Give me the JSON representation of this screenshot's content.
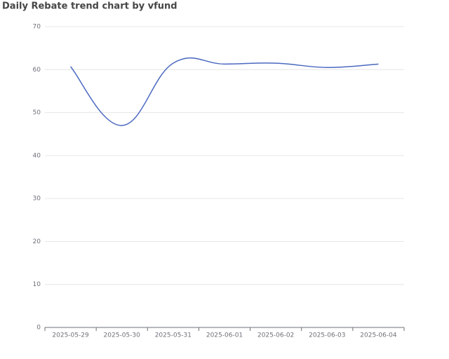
{
  "chart_data": {
    "type": "line",
    "title": "Daily Rebate trend chart by vfund",
    "categories": [
      "2025-05-29",
      "2025-05-30",
      "2025-05-31",
      "2025-06-01",
      "2025-06-02",
      "2025-06-03",
      "2025-06-04"
    ],
    "values": [
      60.7,
      47,
      61.5,
      61.3,
      61.5,
      60.5,
      61.3
    ],
    "color": "#4a68c0",
    "ylim": [
      0,
      70
    ],
    "yticks": [
      0,
      10,
      20,
      30,
      40,
      50,
      60,
      70
    ],
    "grid": true,
    "smooth": true
  }
}
